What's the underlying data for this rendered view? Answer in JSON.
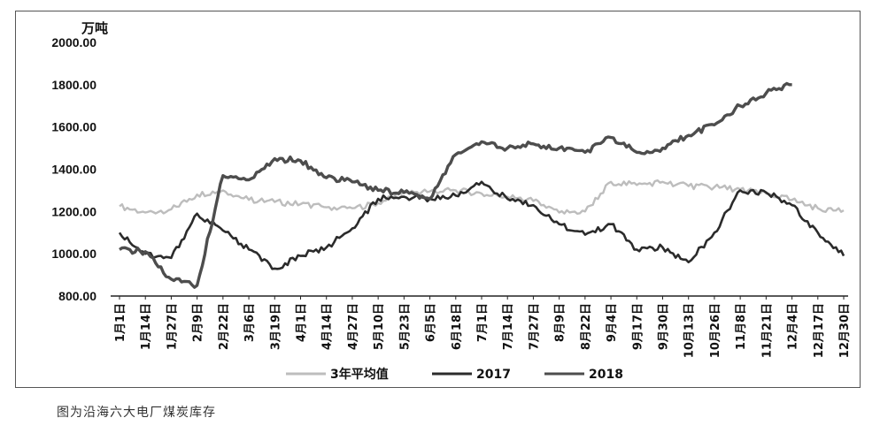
{
  "caption": "图为沿海六大电厂煤炭库存",
  "chart_data": {
    "type": "line",
    "unit_label": "万吨",
    "ylim": [
      800,
      2000
    ],
    "y_ticks": [
      "2000.00",
      "1800.00",
      "1600.00",
      "1400.00",
      "1200.00",
      "1000.00",
      "800.00"
    ],
    "y_tick_values": [
      2000,
      1800,
      1600,
      1400,
      1200,
      1000,
      800
    ],
    "categories": [
      "1月1日",
      "1月14日",
      "1月27日",
      "2月9日",
      "2月22日",
      "3月6日",
      "3月19日",
      "4月1日",
      "4月14日",
      "4月27日",
      "5月10日",
      "5月23日",
      "6月5日",
      "6月18日",
      "7月1日",
      "7月14日",
      "7月27日",
      "8月9日",
      "8月22日",
      "9月4日",
      "9月17日",
      "9月30日",
      "10月13日",
      "10月26日",
      "11月8日",
      "11月21日",
      "12月4日",
      "12月17日",
      "12月30日"
    ],
    "legend_position": "bottom",
    "series": [
      {
        "name": "3年平均值",
        "color": "#bdbdbd",
        "values": [
          1225,
          1195,
          1210,
          1280,
          1300,
          1255,
          1245,
          1235,
          1220,
          1215,
          1240,
          1290,
          1295,
          1300,
          1285,
          1270,
          1250,
          1195,
          1200,
          1340,
          1325,
          1340,
          1320,
          1315,
          1305,
          1285,
          1255,
          1215,
          1205
        ]
      },
      {
        "name": "2017",
        "color": "#2b2b2b",
        "values": [
          1100,
          1000,
          980,
          1190,
          1110,
          1020,
          930,
          990,
          1030,
          1120,
          1260,
          1270,
          1260,
          1275,
          1340,
          1260,
          1230,
          1140,
          1090,
          1140,
          1020,
          1030,
          960,
          1100,
          1300,
          1290,
          1230,
          1100,
          990
        ]
      },
      {
        "name": "2018",
        "color": "#4d4d4d",
        "values": [
          1020,
          1010,
          880,
          850,
          1370,
          1350,
          1450,
          1440,
          1360,
          1340,
          1300,
          1290,
          1260,
          1470,
          1530,
          1500,
          1520,
          1500,
          1480,
          1550,
          1480,
          1500,
          1560,
          1610,
          1700,
          1760,
          1800,
          null,
          null
        ]
      }
    ]
  }
}
